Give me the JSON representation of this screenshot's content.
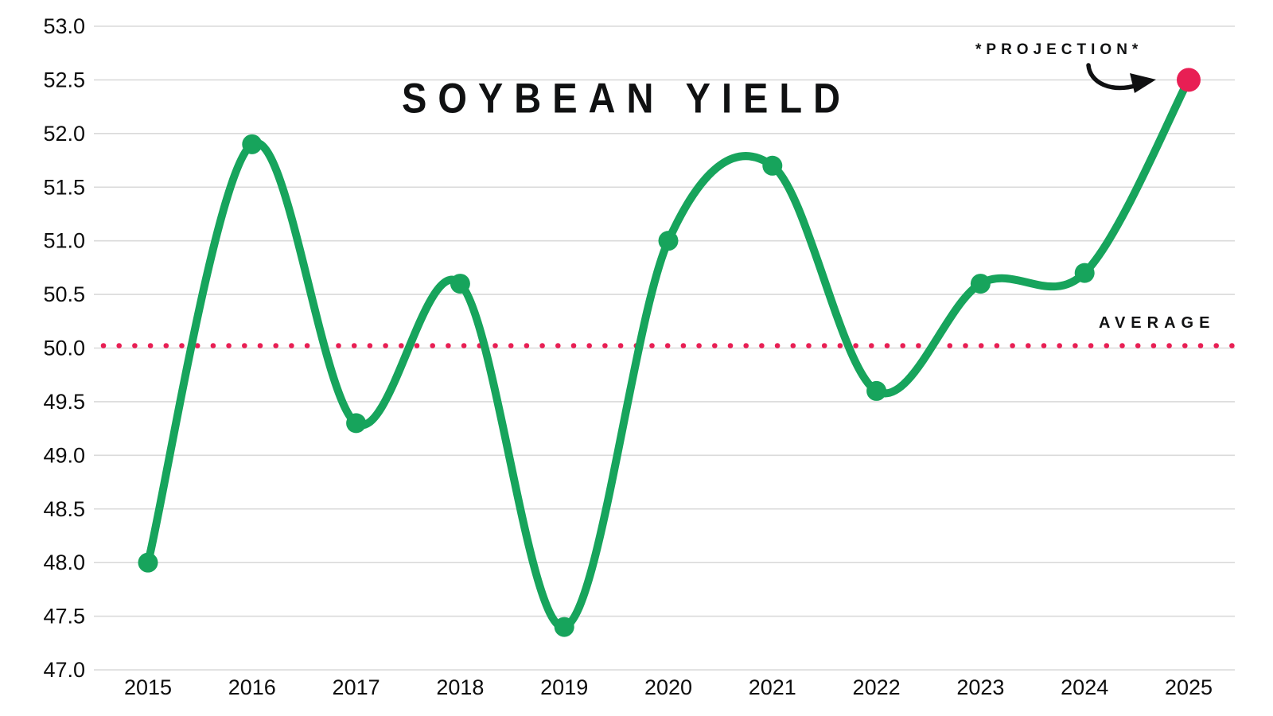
{
  "chart_data": {
    "type": "line",
    "title": "SOYBEAN YIELD",
    "xlabel": "",
    "ylabel": "",
    "categories": [
      2015,
      2016,
      2017,
      2018,
      2019,
      2020,
      2021,
      2022,
      2023,
      2024,
      2025
    ],
    "series": [
      {
        "name": "Soybean Yield",
        "values": [
          48.0,
          51.9,
          49.3,
          50.6,
          47.4,
          51.0,
          51.7,
          49.6,
          50.6,
          50.7,
          52.5
        ]
      }
    ],
    "ylim": [
      47.0,
      53.0
    ],
    "ytick_step": 0.5,
    "ytick_labels": [
      "47.0",
      "47.5",
      "48.0",
      "48.5",
      "49.0",
      "49.5",
      "50.0",
      "50.5",
      "51.0",
      "51.5",
      "52.0",
      "52.5",
      "53.0"
    ],
    "grid": "horizontal",
    "legend_position": "none",
    "average_line": {
      "value": 50.0,
      "label": "AVERAGE",
      "style": "dotted"
    },
    "projection": {
      "category": 2025,
      "value": 52.5,
      "label": "*PROJECTION*"
    },
    "colors": {
      "line": "#17a45c",
      "point": "#17a45c",
      "projection_point": "#e81f54",
      "average_dots": "#e81f54",
      "grid": "#dadada",
      "tick_text": "#0d0d0d",
      "annotation_text": "#111213"
    }
  }
}
